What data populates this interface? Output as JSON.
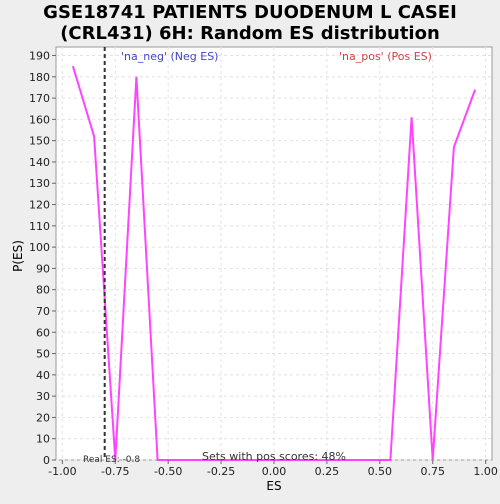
{
  "chart_data": {
    "type": "line",
    "title_line1": "GSE18741 PATIENTS DUODENUM L CASEI",
    "title_line2": "(CRL431) 6H: Random ES distribution",
    "xlabel": "ES",
    "ylabel": "P(ES)",
    "xlim": [
      -1.03,
      1.03
    ],
    "ylim": [
      0,
      194
    ],
    "x_ticks": [
      -1.0,
      -0.75,
      -0.5,
      -0.25,
      0.0,
      0.25,
      0.5,
      0.75,
      1.0
    ],
    "x_tick_labels": [
      "-1.00",
      "-0.75",
      "-0.50",
      "-0.25",
      "0.00",
      "0.25",
      "0.50",
      "0.75",
      "1.00"
    ],
    "y_ticks": [
      0,
      10,
      20,
      30,
      40,
      50,
      60,
      70,
      80,
      90,
      100,
      110,
      120,
      130,
      140,
      150,
      160,
      170,
      180,
      190
    ],
    "y_tick_labels": [
      "0",
      "10",
      "20",
      "30",
      "40",
      "50",
      "60",
      "70",
      "80",
      "90",
      "100",
      "110",
      "120",
      "130",
      "140",
      "150",
      "160",
      "170",
      "180",
      "190"
    ],
    "grid": true,
    "series": [
      {
        "color": "#ff44ff",
        "x": [
          -0.95,
          -0.85,
          -0.75,
          -0.65,
          -0.55,
          -0.45,
          -0.35,
          -0.25,
          -0.15,
          -0.05,
          0.05,
          0.15,
          0.25,
          0.35,
          0.45,
          0.55,
          0.65,
          0.75,
          0.85,
          0.95
        ],
        "y": [
          185,
          152,
          0,
          180,
          0,
          0,
          0,
          0,
          0,
          0,
          0,
          0,
          0,
          0,
          0,
          0,
          161,
          0,
          147,
          174
        ]
      }
    ],
    "real_es": -0.8,
    "real_es_label": "Real ES: -0.8",
    "neg_label": "'na_neg' (Neg ES)",
    "neg_color": "#4444cc",
    "pos_label": "'na_pos' (Pos ES)",
    "pos_color": "#cc4444",
    "footer": "Sets with pos scores: 48%"
  }
}
